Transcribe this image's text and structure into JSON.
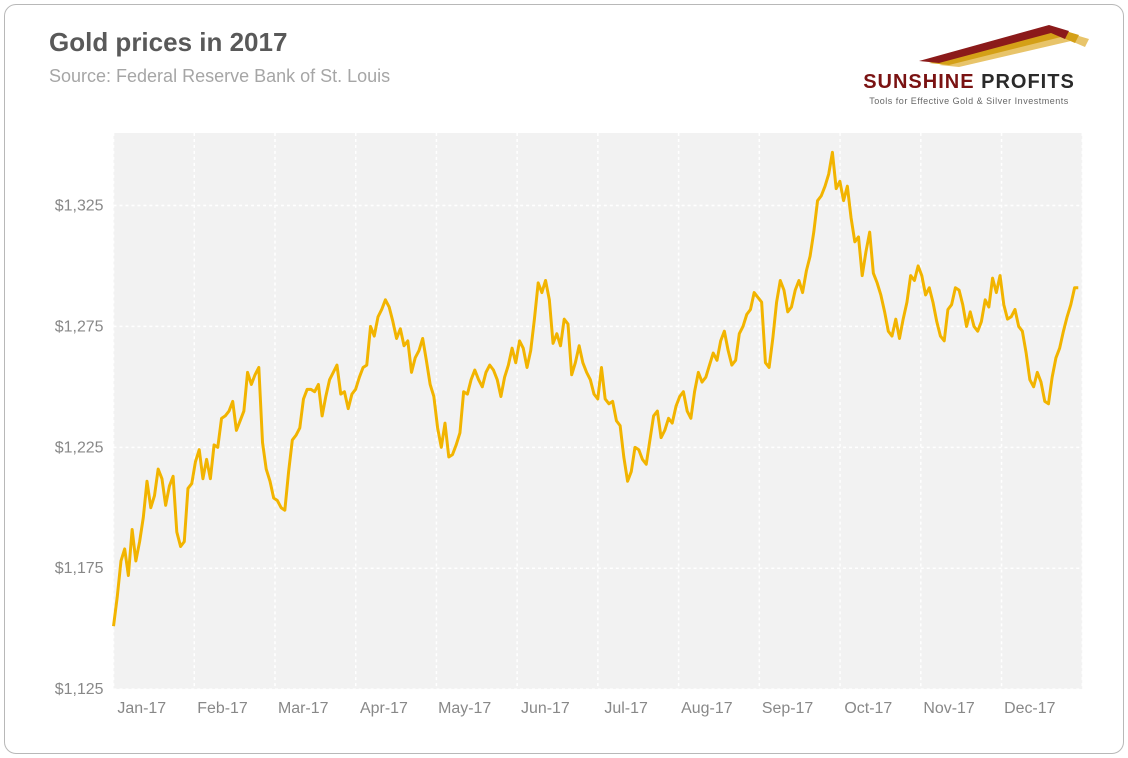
{
  "title": "Gold prices in 2017",
  "source": "Source: Federal Reserve Bank of St. Louis",
  "logo": {
    "name1": "SUNSHINE",
    "name2": "PROFITS",
    "tagline": "Tools for Effective Gold & Silver Investments"
  },
  "chart": {
    "type": "line",
    "background_color": "#f2f2f2",
    "grid_color": "#ffffff",
    "grid_dash": "3 3",
    "axis_label_color": "#888888",
    "axis_fontsize": 16,
    "line_color": "#f2b400",
    "line_width": 3,
    "ylim": [
      1125,
      1355
    ],
    "ytick_values": [
      1125,
      1175,
      1225,
      1275,
      1325
    ],
    "ytick_labels": [
      "$1,125",
      "$1,175",
      "$1,225",
      "$1,275",
      "$1,325"
    ],
    "x_categories": [
      "Jan-17",
      "Feb-17",
      "Mar-17",
      "Apr-17",
      "May-17",
      "Jun-17",
      "Jul-17",
      "Aug-17",
      "Sep-17",
      "Oct-17",
      "Nov-17",
      "Dec-17"
    ],
    "x_count": 260,
    "series": [
      1151,
      1163,
      1178,
      1183,
      1172,
      1191,
      1178,
      1186,
      1196,
      1211,
      1200,
      1205,
      1216,
      1212,
      1201,
      1209,
      1213,
      1190,
      1184,
      1186,
      1208,
      1210,
      1219,
      1224,
      1212,
      1220,
      1212,
      1226,
      1225,
      1237,
      1238,
      1240,
      1244,
      1232,
      1236,
      1240,
      1256,
      1251,
      1255,
      1258,
      1227,
      1216,
      1211,
      1204,
      1203,
      1200,
      1199,
      1215,
      1228,
      1230,
      1233,
      1245,
      1249,
      1249,
      1248,
      1251,
      1238,
      1246,
      1253,
      1256,
      1259,
      1247,
      1248,
      1241,
      1247,
      1249,
      1254,
      1258,
      1259,
      1275,
      1271,
      1279,
      1282,
      1286,
      1283,
      1277,
      1270,
      1274,
      1267,
      1269,
      1256,
      1262,
      1265,
      1270,
      1261,
      1251,
      1246,
      1233,
      1225,
      1235,
      1221,
      1222,
      1226,
      1231,
      1248,
      1247,
      1253,
      1257,
      1253,
      1250,
      1256,
      1259,
      1257,
      1253,
      1246,
      1254,
      1259,
      1266,
      1260,
      1269,
      1266,
      1258,
      1265,
      1278,
      1293,
      1289,
      1294,
      1286,
      1268,
      1272,
      1267,
      1278,
      1276,
      1255,
      1260,
      1267,
      1260,
      1256,
      1253,
      1247,
      1245,
      1258,
      1245,
      1243,
      1244,
      1236,
      1234,
      1221,
      1211,
      1215,
      1225,
      1224,
      1220,
      1218,
      1228,
      1238,
      1240,
      1229,
      1232,
      1237,
      1235,
      1242,
      1246,
      1248,
      1240,
      1237,
      1248,
      1256,
      1252,
      1254,
      1259,
      1264,
      1261,
      1269,
      1273,
      1265,
      1259,
      1261,
      1272,
      1275,
      1280,
      1282,
      1289,
      1287,
      1285,
      1260,
      1258,
      1270,
      1285,
      1294,
      1290,
      1281,
      1283,
      1290,
      1294,
      1289,
      1298,
      1304,
      1314,
      1327,
      1329,
      1333,
      1338,
      1347,
      1332,
      1335,
      1327,
      1333,
      1320,
      1310,
      1312,
      1296,
      1306,
      1314,
      1297,
      1293,
      1288,
      1281,
      1273,
      1271,
      1278,
      1270,
      1278,
      1285,
      1296,
      1294,
      1300,
      1296,
      1288,
      1291,
      1285,
      1277,
      1271,
      1269,
      1282,
      1284,
      1291,
      1290,
      1284,
      1275,
      1281,
      1275,
      1273,
      1277,
      1286,
      1283,
      1295,
      1289,
      1296,
      1284,
      1278,
      1279,
      1282,
      1275,
      1273,
      1264,
      1253,
      1250,
      1256,
      1252,
      1244,
      1243,
      1254,
      1262,
      1266,
      1273,
      1279,
      1284,
      1291,
      1291
    ]
  }
}
